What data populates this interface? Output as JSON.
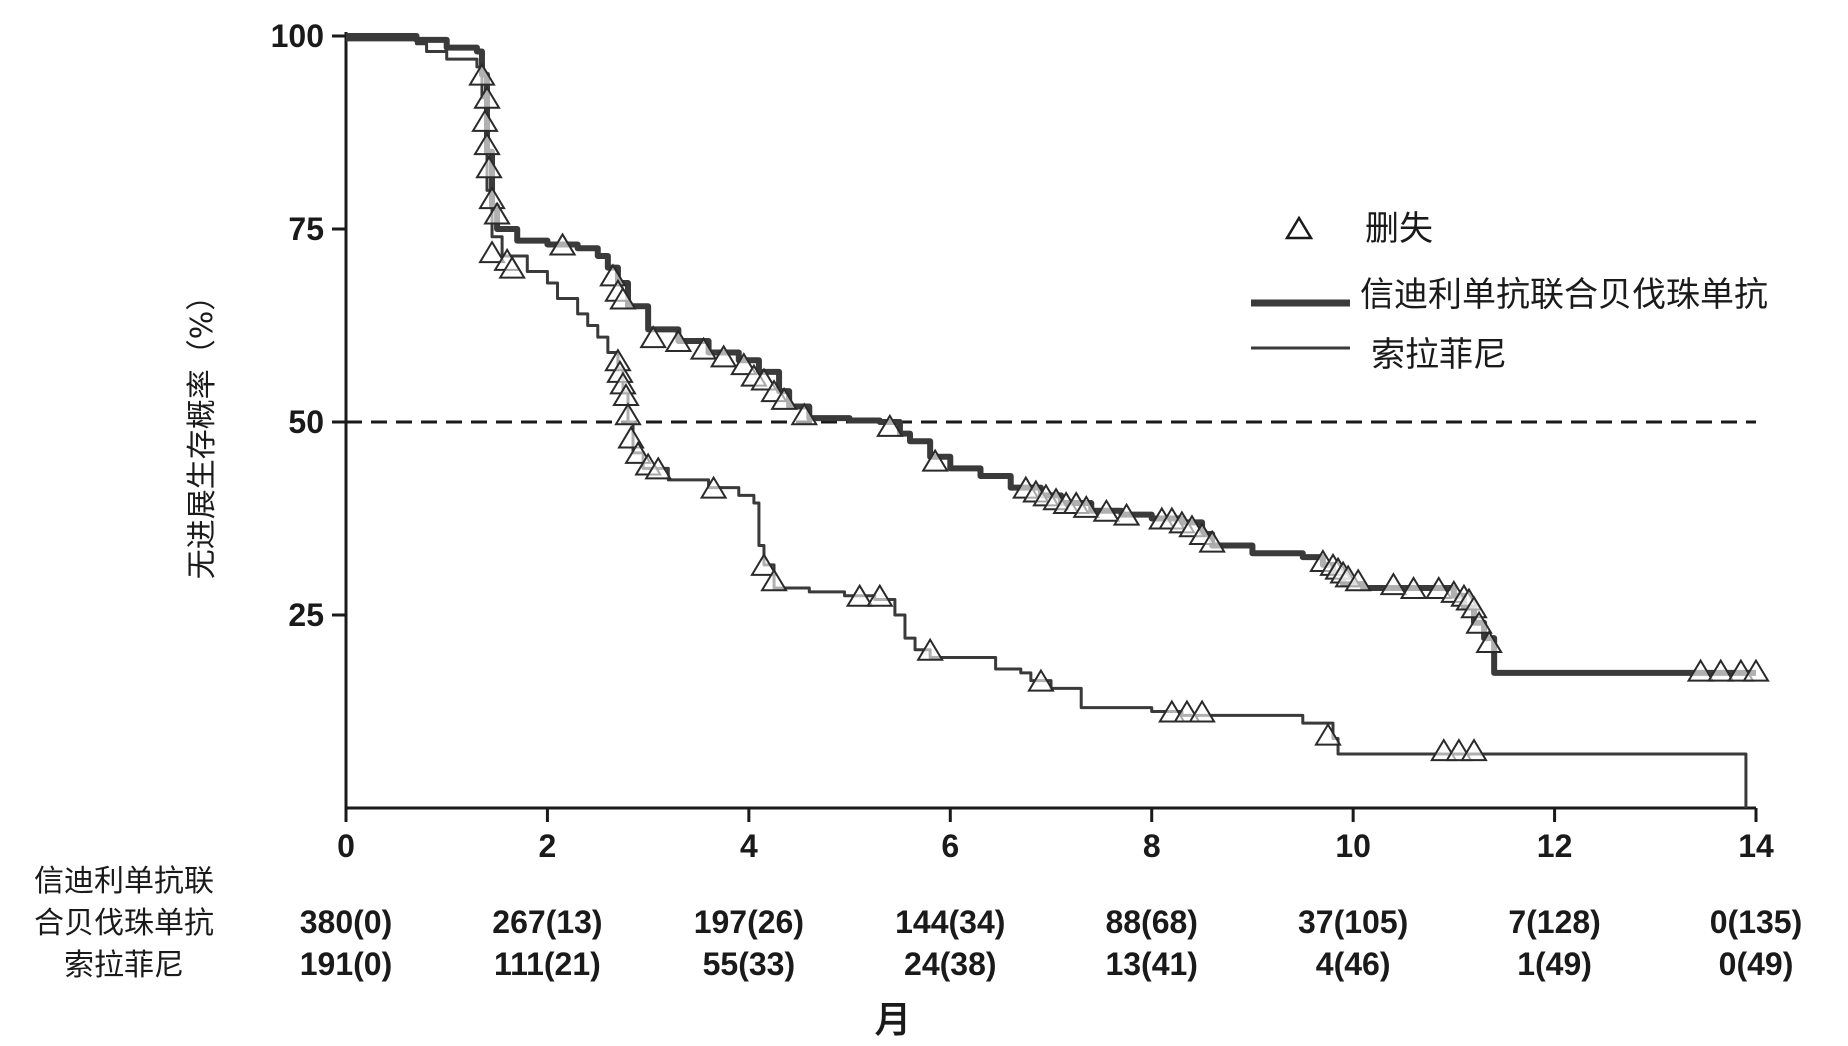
{
  "chart_data": {
    "type": "line",
    "subtype": "kaplan-meier",
    "ylabel": "无进展生存概率（%）",
    "xlabel": "月",
    "xlim": [
      0,
      14
    ],
    "ylim": [
      0,
      100
    ],
    "x_ticks": [
      "0",
      "2",
      "4",
      "6",
      "8",
      "10",
      "12",
      "14"
    ],
    "y_ticks": [
      "25",
      "50",
      "75",
      "100"
    ],
    "x_tick_values": [
      0,
      2,
      4,
      6,
      8,
      10,
      12,
      14
    ],
    "y_tick_values": [
      25,
      50,
      75,
      100
    ],
    "reference_line": {
      "y": 50,
      "style": "dashed"
    },
    "legend": {
      "placement": "right",
      "censored_label": "删失",
      "entries": [
        "信迪利单抗联合贝伐珠单抗",
        "索拉菲尼"
      ]
    },
    "series": [
      {
        "name": "信迪利单抗联合贝伐珠单抗",
        "color": "#3a3a3a",
        "weight": "thick",
        "steps": [
          [
            0,
            100
          ],
          [
            0.7,
            99.5
          ],
          [
            1.0,
            98.5
          ],
          [
            1.3,
            98
          ],
          [
            1.35,
            95
          ],
          [
            1.4,
            85
          ],
          [
            1.45,
            78
          ],
          [
            1.5,
            75
          ],
          [
            1.7,
            73.5
          ],
          [
            2.0,
            73
          ],
          [
            2.3,
            72.5
          ],
          [
            2.5,
            71.5
          ],
          [
            2.6,
            70
          ],
          [
            2.7,
            68
          ],
          [
            2.8,
            65
          ],
          [
            3.0,
            62
          ],
          [
            3.3,
            60.5
          ],
          [
            3.6,
            59
          ],
          [
            3.9,
            58
          ],
          [
            4.1,
            56.5
          ],
          [
            4.3,
            54
          ],
          [
            4.4,
            52
          ],
          [
            4.6,
            50.5
          ],
          [
            5.0,
            50.2
          ],
          [
            5.3,
            50
          ],
          [
            5.5,
            48.5
          ],
          [
            5.6,
            47.5
          ],
          [
            5.8,
            45.5
          ],
          [
            6.0,
            44
          ],
          [
            6.3,
            43
          ],
          [
            6.6,
            41.5
          ],
          [
            6.9,
            40.5
          ],
          [
            7.1,
            39.5
          ],
          [
            7.4,
            38.5
          ],
          [
            7.7,
            38
          ],
          [
            8.0,
            37.5
          ],
          [
            8.3,
            37
          ],
          [
            8.5,
            35.5
          ],
          [
            8.6,
            34
          ],
          [
            9.0,
            33
          ],
          [
            9.5,
            32.5
          ],
          [
            9.7,
            31.5
          ],
          [
            9.8,
            30.5
          ],
          [
            9.9,
            29
          ],
          [
            10.1,
            28.5
          ],
          [
            10.9,
            28.5
          ],
          [
            11.0,
            27.5
          ],
          [
            11.1,
            26
          ],
          [
            11.2,
            24
          ],
          [
            11.3,
            22
          ],
          [
            11.4,
            17.5
          ],
          [
            14.0,
            17.5
          ]
        ],
        "censored": [
          [
            1.35,
            95
          ],
          [
            1.38,
            89
          ],
          [
            1.4,
            86
          ],
          [
            1.42,
            83
          ],
          [
            1.45,
            79
          ],
          [
            1.5,
            77
          ],
          [
            2.15,
            73
          ],
          [
            2.65,
            69
          ],
          [
            2.7,
            67
          ],
          [
            2.75,
            66
          ],
          [
            3.05,
            61
          ],
          [
            3.3,
            60.5
          ],
          [
            3.55,
            59.5
          ],
          [
            3.75,
            58.5
          ],
          [
            3.95,
            57.5
          ],
          [
            4.05,
            56
          ],
          [
            4.15,
            55.5
          ],
          [
            4.25,
            54
          ],
          [
            4.35,
            53
          ],
          [
            4.55,
            51
          ],
          [
            5.4,
            49.5
          ],
          [
            5.85,
            45
          ],
          [
            6.75,
            41.5
          ],
          [
            6.85,
            41
          ],
          [
            6.95,
            40.5
          ],
          [
            7.05,
            40
          ],
          [
            7.15,
            39.5
          ],
          [
            7.25,
            39.5
          ],
          [
            7.35,
            39
          ],
          [
            7.55,
            38.5
          ],
          [
            7.75,
            38
          ],
          [
            8.1,
            37.5
          ],
          [
            8.2,
            37.5
          ],
          [
            8.3,
            37
          ],
          [
            8.4,
            36.5
          ],
          [
            8.5,
            35.5
          ],
          [
            8.6,
            34.5
          ],
          [
            9.7,
            32
          ],
          [
            9.8,
            31.5
          ],
          [
            9.85,
            31
          ],
          [
            9.9,
            30.5
          ],
          [
            9.95,
            30
          ],
          [
            10.05,
            29.5
          ],
          [
            10.4,
            29
          ],
          [
            10.6,
            28.5
          ],
          [
            10.85,
            28.5
          ],
          [
            11.0,
            28
          ],
          [
            11.1,
            27.5
          ],
          [
            11.15,
            27
          ],
          [
            11.2,
            26
          ],
          [
            11.25,
            24
          ],
          [
            11.35,
            21.5
          ],
          [
            13.45,
            17.8
          ],
          [
            13.65,
            17.8
          ],
          [
            13.85,
            17.8
          ],
          [
            14.0,
            17.8
          ]
        ]
      },
      {
        "name": "索拉菲尼",
        "color": "#3a3a3a",
        "weight": "thin",
        "steps": [
          [
            0,
            99.5
          ],
          [
            0.7,
            99
          ],
          [
            0.8,
            98
          ],
          [
            1.0,
            97
          ],
          [
            1.3,
            96
          ],
          [
            1.35,
            92
          ],
          [
            1.4,
            80
          ],
          [
            1.45,
            74
          ],
          [
            1.55,
            71.5
          ],
          [
            1.8,
            69.5
          ],
          [
            2.0,
            68
          ],
          [
            2.1,
            66
          ],
          [
            2.3,
            64
          ],
          [
            2.4,
            62.5
          ],
          [
            2.5,
            61
          ],
          [
            2.6,
            59
          ],
          [
            2.7,
            57
          ],
          [
            2.75,
            54
          ],
          [
            2.8,
            50
          ],
          [
            2.85,
            46
          ],
          [
            2.95,
            44
          ],
          [
            3.2,
            42.5
          ],
          [
            3.6,
            41.5
          ],
          [
            3.9,
            40.5
          ],
          [
            4.05,
            39.5
          ],
          [
            4.1,
            34
          ],
          [
            4.15,
            31.5
          ],
          [
            4.25,
            28.5
          ],
          [
            4.6,
            28
          ],
          [
            4.95,
            27.5
          ],
          [
            5.25,
            27
          ],
          [
            5.45,
            25
          ],
          [
            5.55,
            22
          ],
          [
            5.65,
            20.5
          ],
          [
            5.8,
            19.5
          ],
          [
            6.3,
            19.5
          ],
          [
            6.45,
            18
          ],
          [
            6.7,
            17.5
          ],
          [
            6.8,
            16.5
          ],
          [
            7.0,
            15.5
          ],
          [
            7.3,
            14.5
          ],
          [
            7.3,
            13
          ],
          [
            8.0,
            12.5
          ],
          [
            8.3,
            12
          ],
          [
            9.1,
            12
          ],
          [
            9.5,
            11
          ],
          [
            9.8,
            9
          ],
          [
            9.85,
            7
          ],
          [
            13.9,
            7
          ],
          [
            13.9,
            0
          ]
        ],
        "censored": [
          [
            1.4,
            92
          ],
          [
            1.45,
            72
          ],
          [
            1.6,
            71
          ],
          [
            1.65,
            70
          ],
          [
            2.7,
            58
          ],
          [
            2.72,
            56.5
          ],
          [
            2.75,
            55
          ],
          [
            2.78,
            53.5
          ],
          [
            2.8,
            51
          ],
          [
            2.83,
            48
          ],
          [
            2.9,
            46
          ],
          [
            3.0,
            44.5
          ],
          [
            3.1,
            44
          ],
          [
            3.65,
            41.5
          ],
          [
            4.15,
            31.5
          ],
          [
            4.25,
            29.5
          ],
          [
            5.1,
            27.5
          ],
          [
            5.3,
            27.5
          ],
          [
            5.8,
            20.5
          ],
          [
            6.9,
            16.5
          ],
          [
            8.2,
            12.5
          ],
          [
            8.35,
            12.5
          ],
          [
            8.5,
            12.5
          ],
          [
            9.75,
            9.5
          ],
          [
            10.9,
            7.5
          ],
          [
            11.05,
            7.5
          ],
          [
            11.2,
            7.5
          ]
        ]
      }
    ],
    "risk_table": {
      "rows": [
        {
          "label_lines": [
            "信迪利单抗联",
            "合贝伐珠单抗"
          ],
          "values": [
            "380(0)",
            "267(13)",
            "197(26)",
            "144(34)",
            "88(68)",
            "37(105)",
            "7(128)",
            "0(135)"
          ]
        },
        {
          "label_lines": [
            "索拉菲尼"
          ],
          "values": [
            "191(0)",
            "111(21)",
            "55(33)",
            "24(38)",
            "13(41)",
            "4(46)",
            "1(49)",
            "0(49)"
          ]
        }
      ]
    }
  }
}
